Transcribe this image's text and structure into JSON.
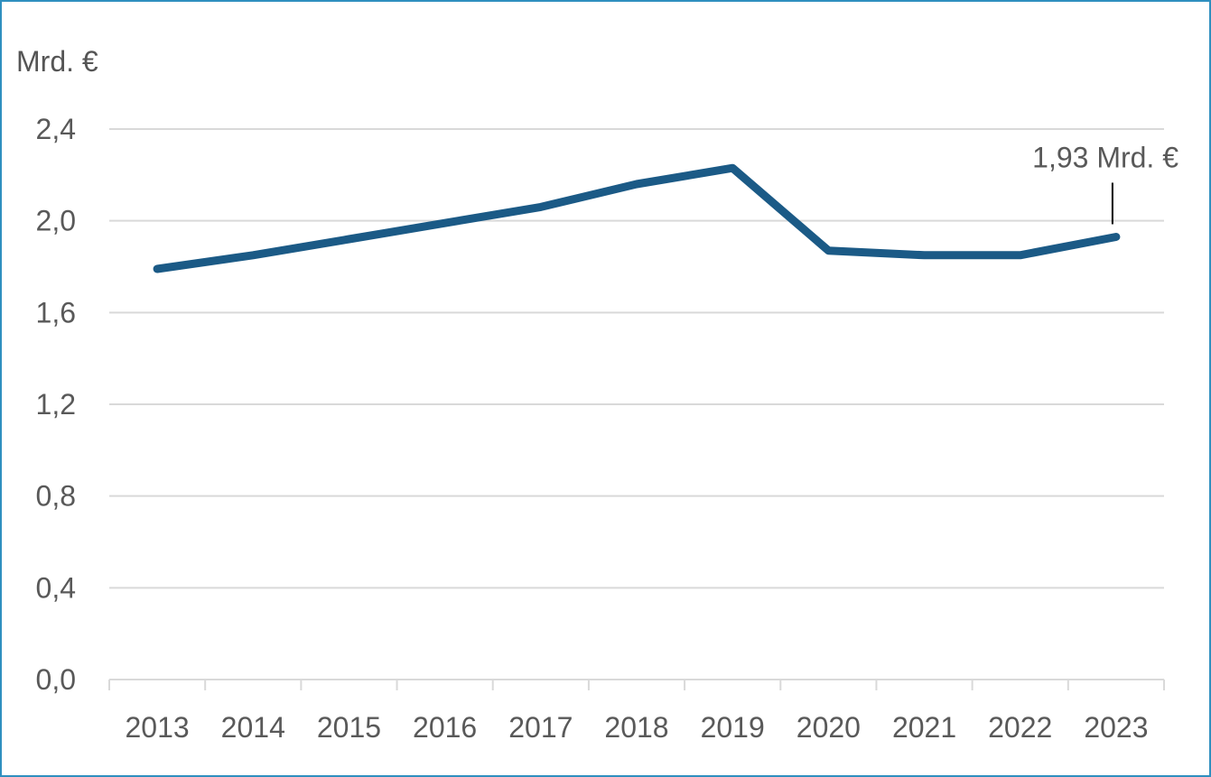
{
  "chart_data": {
    "type": "line",
    "title": "",
    "unit_label": "Mrd. €",
    "xlabel": "",
    "ylabel": "",
    "categories": [
      "2013",
      "2014",
      "2015",
      "2016",
      "2017",
      "2018",
      "2019",
      "2020",
      "2021",
      "2022",
      "2023"
    ],
    "series": [
      {
        "values": [
          1.79,
          1.85,
          1.92,
          1.99,
          2.06,
          2.16,
          2.23,
          1.87,
          1.85,
          1.85,
          1.93
        ],
        "color": "#1b5a86"
      }
    ],
    "ylim": [
      0,
      2.4
    ],
    "yticks": [
      "0,0",
      "0,4",
      "0,8",
      "1,2",
      "1,6",
      "2,0",
      "2,4"
    ],
    "yticks_values": [
      0,
      0.4,
      0.8,
      1.2,
      1.6,
      2.0,
      2.4
    ],
    "grid": true,
    "annotation": {
      "text": "1,93 Mrd. €",
      "category": "2023"
    }
  },
  "colors": {
    "frame": "#2f8fbf",
    "grid": "#d9d9d9",
    "line": "#1b5a86",
    "text": "#595959"
  }
}
